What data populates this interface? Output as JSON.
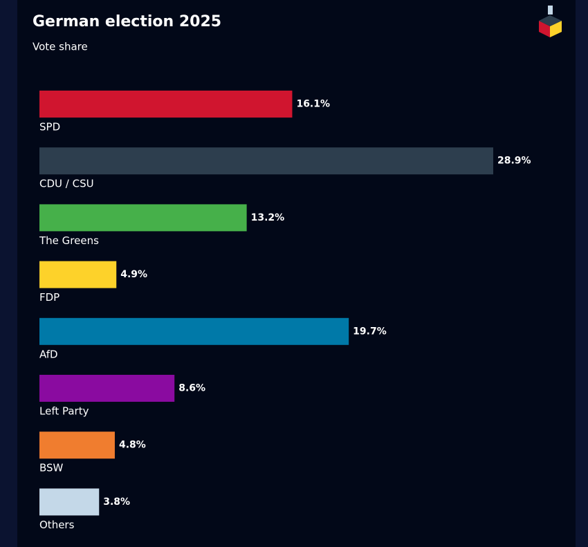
{
  "chart_data": {
    "type": "hbar",
    "title": "German election 2025",
    "subtitle": "Vote share",
    "categories": [
      "SPD",
      "CDU / CSU",
      "The Greens",
      "FDP",
      "AfD",
      "Left Party",
      "BSW",
      "Others"
    ],
    "values": [
      16.1,
      28.9,
      13.2,
      4.9,
      19.7,
      8.6,
      4.8,
      3.8
    ],
    "value_labels": [
      "16.1%",
      "28.9%",
      "13.2%",
      "4.9%",
      "19.7%",
      "8.6%",
      "4.8%",
      "3.8%"
    ],
    "colors": [
      "#d0152f",
      "#2d3e4e",
      "#46b04a",
      "#fdd22a",
      "#0079a8",
      "#8a0ba0",
      "#f07d2f",
      "#c4d8e8"
    ]
  }
}
